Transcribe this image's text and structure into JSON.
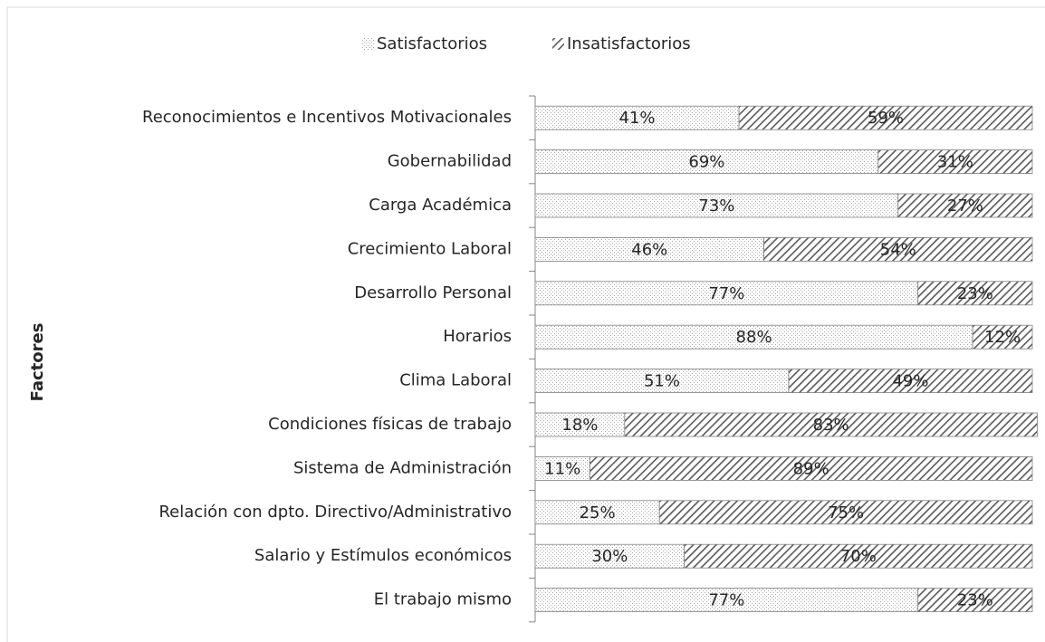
{
  "chart_data": {
    "type": "stacked-bar-horizontal",
    "y_axis_label": "Factores",
    "categories": [
      "Reconocimientos e Incentivos Motivacionales",
      "Gobernabilidad",
      "Carga Académica",
      "Crecimiento Laboral",
      "Desarrollo Personal",
      "Horarios",
      "Clima Laboral",
      "Condiciones físicas de trabajo",
      "Sistema de Administración",
      "Relación con dpto. Directivo/Administrativo",
      "Salario y Estímulos económicos",
      "El trabajo mismo"
    ],
    "series": [
      {
        "name": "Satisfactorios",
        "color": "#a6a6a6",
        "values": [
          41,
          69,
          73,
          46,
          77,
          88,
          51,
          18,
          11,
          25,
          30,
          77
        ],
        "value_labels": [
          "41%",
          "69%",
          "73%",
          "46%",
          "77%",
          "88%",
          "51%",
          "18%",
          "11%",
          "25%",
          "30%",
          "77%"
        ]
      },
      {
        "name": "Insatisfactorios",
        "color": "#595959",
        "values": [
          59,
          31,
          27,
          54,
          23,
          12,
          49,
          83,
          89,
          75,
          70,
          23
        ],
        "value_labels": [
          "59%",
          "31%",
          "27%",
          "54%",
          "23%",
          "12%",
          "49%",
          "83%",
          "89%",
          "75%",
          "70%",
          "23%"
        ]
      }
    ],
    "legend": "top"
  }
}
